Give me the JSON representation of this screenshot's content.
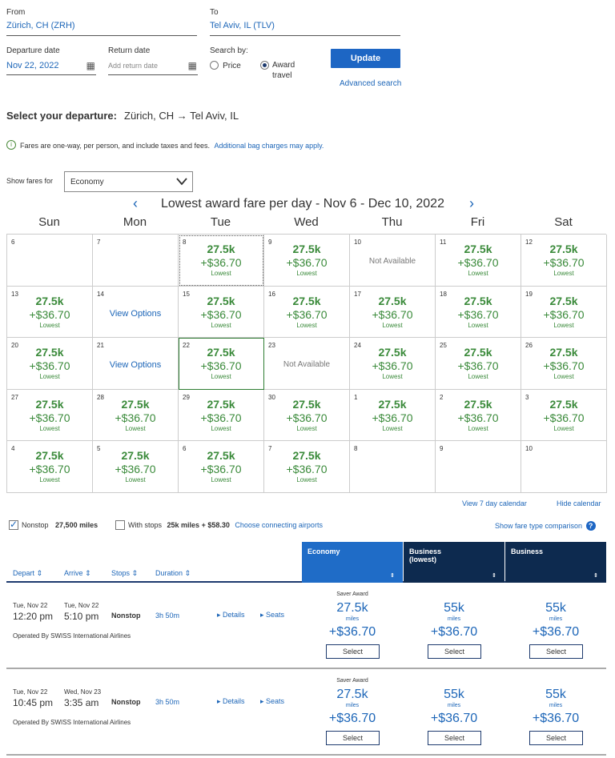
{
  "search": {
    "from_label": "From",
    "from_value": "Zürich, CH (ZRH)",
    "to_label": "To",
    "to_value": "Tel Aviv, IL (TLV)",
    "depart_label": "Departure date",
    "depart_value": "Nov 22, 2022",
    "return_label": "Return date",
    "return_placeholder": "Add return date",
    "search_by_label": "Search by:",
    "opt_price": "Price",
    "opt_award_1": "Award",
    "opt_award_2": "travel",
    "update_label": "Update",
    "advanced_label": "Advanced search"
  },
  "select_departure": {
    "label": "Select your departure:",
    "route": "Zürich, CH → Tel Aviv, IL"
  },
  "notice": {
    "icon": "info-icon",
    "text": "Fares are one-way, per person, and include taxes and fees.",
    "link": "Additional bag charges may apply."
  },
  "fares_for": {
    "label": "Show fares for",
    "value": "Economy"
  },
  "calendar": {
    "title": "Lowest award fare per day - Nov 6 - Dec 10, 2022",
    "days_of_week": [
      "Sun",
      "Mon",
      "Tue",
      "Wed",
      "Thu",
      "Fri",
      "Sat"
    ],
    "miles": "27.5k",
    "price": "+$36.70",
    "lowest": "Lowest",
    "not_available": "Not Available",
    "view_options": "View Options",
    "cells": [
      {
        "day": "6",
        "type": "empty"
      },
      {
        "day": "7",
        "type": "empty"
      },
      {
        "day": "8",
        "type": "fare",
        "state": "dotted"
      },
      {
        "day": "9",
        "type": "fare"
      },
      {
        "day": "10",
        "type": "na"
      },
      {
        "day": "11",
        "type": "fare"
      },
      {
        "day": "12",
        "type": "fare"
      },
      {
        "day": "13",
        "type": "fare"
      },
      {
        "day": "14",
        "type": "vo"
      },
      {
        "day": "15",
        "type": "fare"
      },
      {
        "day": "16",
        "type": "fare"
      },
      {
        "day": "17",
        "type": "fare"
      },
      {
        "day": "18",
        "type": "fare"
      },
      {
        "day": "19",
        "type": "fare"
      },
      {
        "day": "20",
        "type": "fare"
      },
      {
        "day": "21",
        "type": "vo"
      },
      {
        "day": "22",
        "type": "fare",
        "state": "selected"
      },
      {
        "day": "23",
        "type": "na"
      },
      {
        "day": "24",
        "type": "fare"
      },
      {
        "day": "25",
        "type": "fare"
      },
      {
        "day": "26",
        "type": "fare"
      },
      {
        "day": "27",
        "type": "fare"
      },
      {
        "day": "28",
        "type": "fare"
      },
      {
        "day": "29",
        "type": "fare"
      },
      {
        "day": "30",
        "type": "fare"
      },
      {
        "day": "1",
        "type": "fare"
      },
      {
        "day": "2",
        "type": "fare"
      },
      {
        "day": "3",
        "type": "fare"
      },
      {
        "day": "4",
        "type": "fare"
      },
      {
        "day": "5",
        "type": "fare"
      },
      {
        "day": "6",
        "type": "fare"
      },
      {
        "day": "7",
        "type": "fare"
      },
      {
        "day": "8",
        "type": "empty"
      },
      {
        "day": "9",
        "type": "empty"
      },
      {
        "day": "10",
        "type": "empty"
      }
    ],
    "view7": "View 7 day calendar",
    "hide": "Hide calendar"
  },
  "filters": {
    "nonstop_label": "Nonstop",
    "nonstop_miles": "27,500 miles",
    "stops_label": "With stops",
    "stops_value": "25k miles + $58.30",
    "connecting": "Choose connecting airports",
    "comparison": "Show fare type comparison"
  },
  "results": {
    "columns": [
      "Depart",
      "Arrive",
      "Stops",
      "Duration"
    ],
    "cabins": [
      {
        "name_1": "Economy",
        "name_2": ""
      },
      {
        "name_1": "Business",
        "name_2": "(lowest)"
      },
      {
        "name_1": "Business",
        "name_2": ""
      }
    ],
    "colors": {
      "economy": "#1f6cc7",
      "business": "#0d2a4f"
    },
    "flights": [
      {
        "depart_date": "Tue, Nov 22",
        "depart_time": "12:20 pm",
        "arrive_date": "Tue, Nov 22",
        "arrive_time": "5:10 pm",
        "stops": "Nonstop",
        "duration": "3h 50m",
        "details": "Details",
        "seats": "Seats",
        "operated": "Operated By SWISS International Airlines",
        "saver": "Saver Award",
        "fares": [
          {
            "miles": "27.5k",
            "unit": "miles",
            "price": "+$36.70",
            "select": "Select"
          },
          {
            "miles": "55k",
            "unit": "miles",
            "price": "+$36.70",
            "select": "Select"
          },
          {
            "miles": "55k",
            "unit": "miles",
            "price": "+$36.70",
            "select": "Select"
          }
        ]
      },
      {
        "depart_date": "Tue, Nov 22",
        "depart_time": "10:45 pm",
        "arrive_date": "Wed, Nov 23",
        "arrive_time": "3:35 am",
        "stops": "Nonstop",
        "duration": "3h 50m",
        "details": "Details",
        "seats": "Seats",
        "operated": "Operated By SWISS International Airlines",
        "saver": "Saver Award",
        "fares": [
          {
            "miles": "27.5k",
            "unit": "miles",
            "price": "+$36.70",
            "select": "Select"
          },
          {
            "miles": "55k",
            "unit": "miles",
            "price": "+$36.70",
            "select": "Select"
          },
          {
            "miles": "55k",
            "unit": "miles",
            "price": "+$36.70",
            "select": "Select"
          }
        ]
      }
    ]
  }
}
